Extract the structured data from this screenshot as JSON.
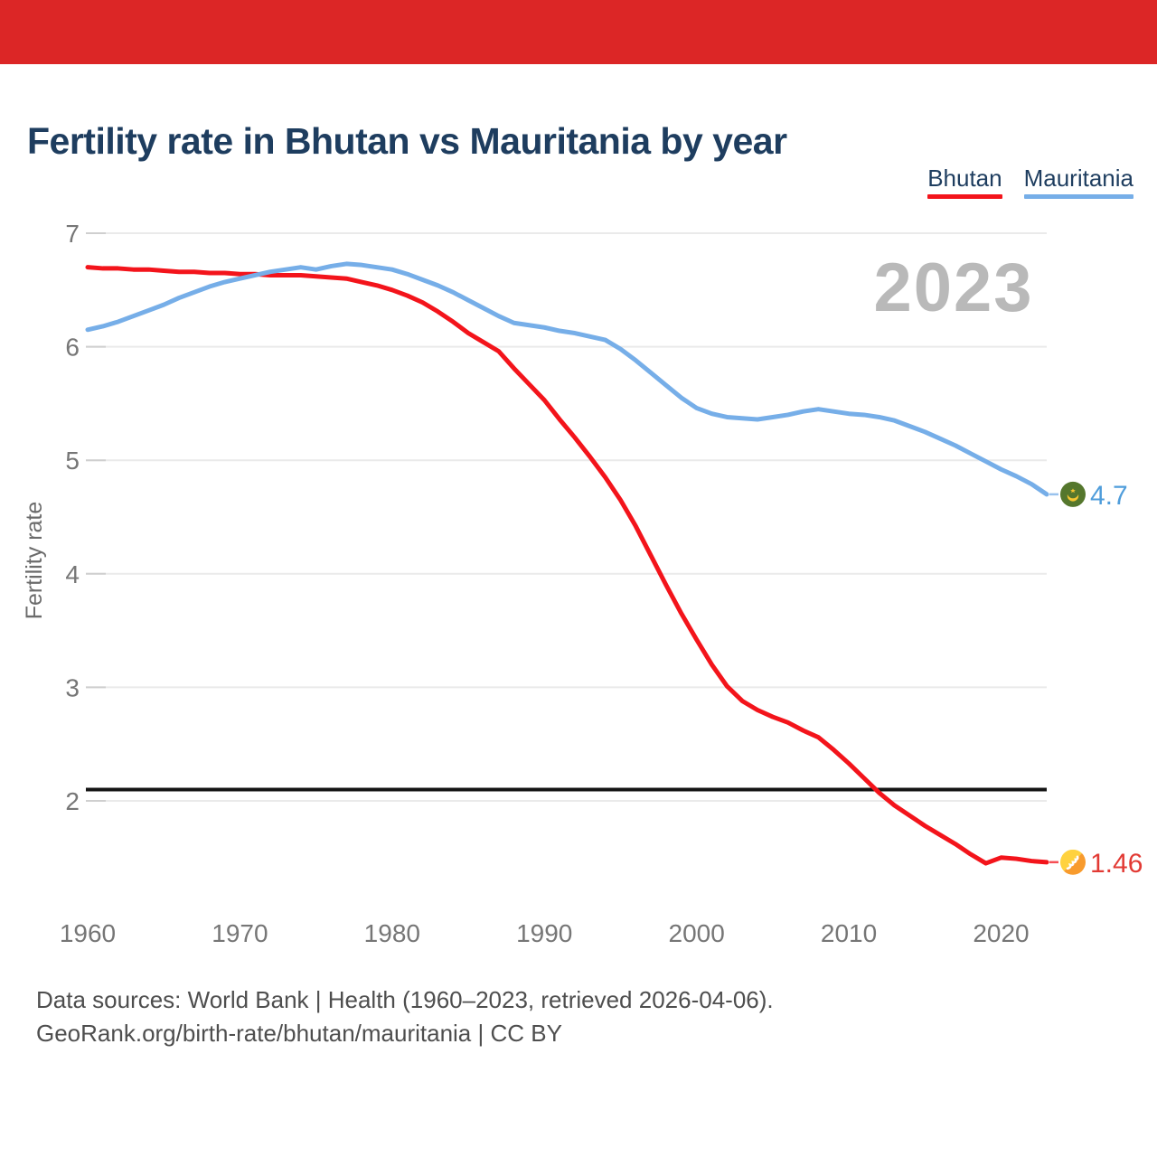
{
  "page": {
    "top_bar_color": "#dc2626",
    "background": "#ffffff"
  },
  "title": {
    "text": "Fertility rate in Bhutan vs Mauritania by year",
    "color": "#1e3d5f"
  },
  "legend": {
    "items": [
      {
        "label": "Bhutan",
        "color": "#f3141b"
      },
      {
        "label": "Mauritania",
        "color": "#76aee8"
      }
    ]
  },
  "watermark": {
    "text": "2023",
    "color": "#b9b9b9"
  },
  "footer": {
    "line1": "Data sources: World Bank | Health (1960–2023, retrieved 2026-04-06).",
    "line2": "GeoRank.org/birth-rate/bhutan/mauritania | CC BY"
  },
  "chart_data": {
    "type": "line",
    "title": "Fertility rate in Bhutan vs Mauritania by year",
    "xlabel": "",
    "ylabel": "Fertility rate",
    "grid": true,
    "legend_position": "top-right",
    "xlim": [
      1960,
      2023
    ],
    "ylim": [
      1.3,
      7
    ],
    "x_ticks": [
      1960,
      1970,
      1980,
      1990,
      2000,
      2010,
      2020
    ],
    "y_ticks": [
      7,
      6,
      5,
      4,
      3,
      2
    ],
    "reference_line": {
      "value": 2.1,
      "color": "#141414"
    },
    "x": [
      1960,
      1961,
      1962,
      1963,
      1964,
      1965,
      1966,
      1967,
      1968,
      1969,
      1970,
      1971,
      1972,
      1973,
      1974,
      1975,
      1976,
      1977,
      1978,
      1979,
      1980,
      1981,
      1982,
      1983,
      1984,
      1985,
      1986,
      1987,
      1988,
      1989,
      1990,
      1991,
      1992,
      1993,
      1994,
      1995,
      1996,
      1997,
      1998,
      1999,
      2000,
      2001,
      2002,
      2003,
      2004,
      2005,
      2006,
      2007,
      2008,
      2009,
      2010,
      2011,
      2012,
      2013,
      2014,
      2015,
      2016,
      2017,
      2018,
      2019,
      2020,
      2021,
      2022,
      2023
    ],
    "series": [
      {
        "name": "Bhutan",
        "color": "#f3141b",
        "label_color": "#e23a34",
        "end_label": "1.46",
        "end_value": 1.46,
        "marker_icon": "bhutan-flag-icon",
        "values": [
          6.7,
          6.69,
          6.69,
          6.68,
          6.68,
          6.67,
          6.66,
          6.66,
          6.65,
          6.65,
          6.64,
          6.64,
          6.63,
          6.63,
          6.63,
          6.62,
          6.61,
          6.6,
          6.57,
          6.54,
          6.5,
          6.45,
          6.39,
          6.31,
          6.22,
          6.12,
          6.04,
          5.96,
          5.81,
          5.67,
          5.53,
          5.36,
          5.2,
          5.03,
          4.85,
          4.65,
          4.42,
          4.16,
          3.9,
          3.65,
          3.42,
          3.2,
          3.01,
          2.88,
          2.8,
          2.74,
          2.69,
          2.62,
          2.56,
          2.45,
          2.33,
          2.2,
          2.07,
          1.96,
          1.87,
          1.78,
          1.7,
          1.62,
          1.53,
          1.45,
          1.5,
          1.49,
          1.47,
          1.46
        ]
      },
      {
        "name": "Mauritania",
        "color": "#76aee8",
        "label_color": "#4f9ddb",
        "end_label": "4.7",
        "end_value": 4.7,
        "marker_icon": "mauritania-flag-icon",
        "values": [
          6.15,
          6.18,
          6.22,
          6.27,
          6.32,
          6.37,
          6.43,
          6.48,
          6.53,
          6.57,
          6.6,
          6.63,
          6.66,
          6.68,
          6.7,
          6.68,
          6.71,
          6.73,
          6.72,
          6.7,
          6.68,
          6.64,
          6.59,
          6.54,
          6.48,
          6.41,
          6.34,
          6.27,
          6.21,
          6.19,
          6.17,
          6.14,
          6.12,
          6.09,
          6.06,
          5.98,
          5.88,
          5.77,
          5.66,
          5.55,
          5.46,
          5.41,
          5.38,
          5.37,
          5.36,
          5.38,
          5.4,
          5.43,
          5.45,
          5.43,
          5.41,
          5.4,
          5.38,
          5.35,
          5.3,
          5.25,
          5.19,
          5.13,
          5.06,
          4.99,
          4.92,
          4.86,
          4.79,
          4.7
        ]
      }
    ]
  }
}
